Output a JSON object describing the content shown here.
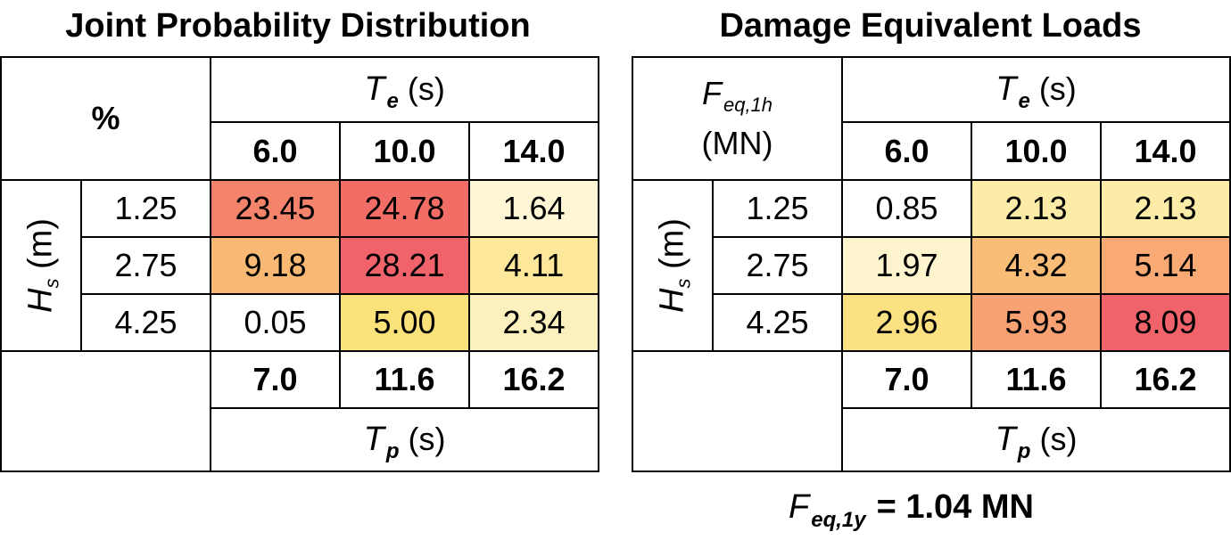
{
  "chart_data": [
    {
      "type": "heatmap",
      "title": "Joint Probability Distribution",
      "corner_label": "%",
      "te_label": "T",
      "te_sub": "e",
      "te_unit": "(s)",
      "tp_label": "T",
      "tp_sub": "p",
      "tp_unit": "(s)",
      "hs_label": "H",
      "hs_sub": "s",
      "hs_unit": "(m)",
      "te_values": [
        "6.0",
        "10.0",
        "14.0"
      ],
      "tp_values": [
        "7.0",
        "11.6",
        "16.2"
      ],
      "hs_values": [
        "1.25",
        "2.75",
        "4.25"
      ],
      "values": [
        [
          "23.45",
          "24.78",
          "1.64"
        ],
        [
          "9.18",
          "28.21",
          "4.11"
        ],
        [
          "0.05",
          "5.00",
          "2.34"
        ]
      ],
      "colors": [
        [
          "#f4836b",
          "#f26d66",
          "#fef6d4"
        ],
        [
          "#f9b873",
          "#f0636a",
          "#fde79a"
        ],
        [
          "#ffffff",
          "#fbe17a",
          "#fdf0bf"
        ]
      ]
    },
    {
      "type": "heatmap",
      "title": "Damage Equivalent Loads",
      "corner_label_main": "F",
      "corner_label_sub": "eq,1h",
      "corner_label_unit": "(MN)",
      "te_label": "T",
      "te_sub": "e",
      "te_unit": "(s)",
      "tp_label": "T",
      "tp_sub": "p",
      "tp_unit": "(s)",
      "hs_label": "H",
      "hs_sub": "s",
      "hs_unit": "(m)",
      "te_values": [
        "6.0",
        "10.0",
        "14.0"
      ],
      "tp_values": [
        "7.0",
        "11.6",
        "16.2"
      ],
      "hs_values": [
        "1.25",
        "2.75",
        "4.25"
      ],
      "values": [
        [
          "0.85",
          "2.13",
          "2.13"
        ],
        [
          "1.97",
          "4.32",
          "5.14"
        ],
        [
          "2.96",
          "5.93",
          "8.09"
        ]
      ],
      "colors": [
        [
          "#ffffff",
          "#fdeba8",
          "#fdeba8"
        ],
        [
          "#fef4cd",
          "#f9bd77",
          "#f9a974"
        ],
        [
          "#fce183",
          "#f8a273",
          "#f0636a"
        ]
      ]
    }
  ],
  "footer": {
    "main": "F",
    "sub": "eq,1y",
    "value": "= 1.04 MN"
  }
}
